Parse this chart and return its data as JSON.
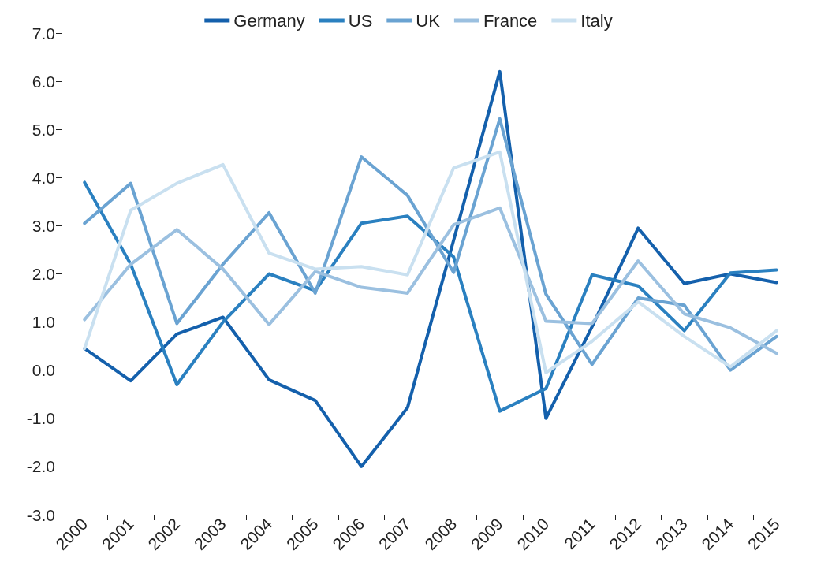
{
  "chart_data": {
    "type": "line",
    "categories": [
      "2000",
      "2001",
      "2002",
      "2003",
      "2004",
      "2005",
      "2006",
      "2007",
      "2008",
      "2009",
      "2010",
      "2011",
      "2012",
      "2013",
      "2014",
      "2015"
    ],
    "series": [
      {
        "name": "Germany",
        "color": "#1460ac",
        "values": [
          0.45,
          -0.22,
          0.75,
          1.1,
          -0.2,
          -0.63,
          -2.0,
          -0.78,
          2.7,
          6.2,
          -1.0,
          0.9,
          2.95,
          1.8,
          2.0,
          1.82
        ]
      },
      {
        "name": "US",
        "color": "#2a80c0",
        "values": [
          3.9,
          2.2,
          -0.3,
          1.0,
          2.0,
          1.65,
          3.05,
          3.2,
          2.35,
          -0.85,
          -0.38,
          1.98,
          1.75,
          0.82,
          2.02,
          2.08
        ]
      },
      {
        "name": "UK",
        "color": "#6aa3d2",
        "values": [
          3.05,
          3.88,
          0.97,
          2.2,
          3.27,
          1.6,
          4.43,
          3.63,
          2.03,
          5.22,
          1.58,
          0.12,
          1.5,
          1.35,
          0.0,
          0.7
        ]
      },
      {
        "name": "France",
        "color": "#9bc0e0",
        "values": [
          1.05,
          2.2,
          2.92,
          2.1,
          0.95,
          2.05,
          1.72,
          1.6,
          3.02,
          3.37,
          1.02,
          0.97,
          2.27,
          1.17,
          0.88,
          0.35
        ]
      },
      {
        "name": "Italy",
        "color": "#c9e0f0",
        "values": [
          0.45,
          3.32,
          3.88,
          4.27,
          2.43,
          2.1,
          2.15,
          1.98,
          4.2,
          4.53,
          -0.05,
          0.6,
          1.42,
          0.7,
          0.07,
          0.82
        ]
      }
    ],
    "ylim": [
      -3,
      7
    ],
    "yticks": [
      {
        "value": -3,
        "label": "-3.0"
      },
      {
        "value": -2,
        "label": "-2.0"
      },
      {
        "value": -1,
        "label": "-1.0"
      },
      {
        "value": 0,
        "label": "0.0"
      },
      {
        "value": 1,
        "label": "1.0"
      },
      {
        "value": 2,
        "label": "2.0"
      },
      {
        "value": 3,
        "label": "3.0"
      },
      {
        "value": 4,
        "label": "4.0"
      },
      {
        "value": 5,
        "label": "5.0"
      },
      {
        "value": 6,
        "label": "6.0"
      },
      {
        "value": 7,
        "label": "7.0"
      }
    ],
    "grid": false,
    "legend": "top",
    "marker": "none",
    "line_style": "solid"
  }
}
